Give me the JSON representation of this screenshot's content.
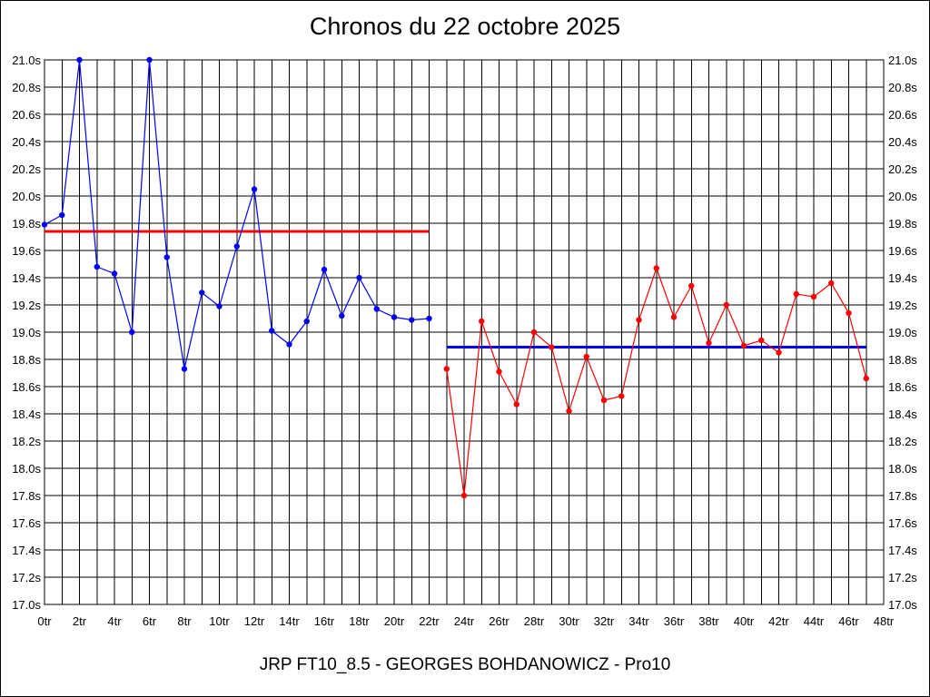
{
  "chart_data": {
    "type": "line",
    "title": "Chronos du 22 octobre 2025",
    "footer": "JRP FT10_8.5 - GEORGES BOHDANOWICZ - Pro10",
    "xlabel": "",
    "ylabel": "",
    "xlim": [
      0,
      48
    ],
    "ylim": [
      17.0,
      21.0
    ],
    "x_tick_step": 2,
    "y_tick_step": 0.2,
    "x_tick_suffix": "tr",
    "y_tick_suffix": "s",
    "grid": true,
    "colors": {
      "blue": "#0000ff",
      "red": "#ff0000",
      "grid": "#000000"
    },
    "series": [
      {
        "color": "#0000ff",
        "points": [
          [
            0,
            19.79
          ],
          [
            1,
            19.86
          ],
          [
            2,
            21.0
          ],
          [
            3,
            19.48
          ],
          [
            4,
            19.43
          ],
          [
            5,
            19.0
          ],
          [
            6,
            21.0
          ],
          [
            7,
            19.55
          ],
          [
            8,
            18.73
          ],
          [
            9,
            19.29
          ],
          [
            10,
            19.19
          ],
          [
            11,
            19.63
          ],
          [
            12,
            20.05
          ],
          [
            13,
            19.01
          ],
          [
            14,
            18.91
          ],
          [
            15,
            19.08
          ],
          [
            16,
            19.46
          ],
          [
            17,
            19.12
          ],
          [
            18,
            19.4
          ],
          [
            19,
            19.17
          ],
          [
            20,
            19.11
          ],
          [
            21,
            19.09
          ],
          [
            22,
            19.1
          ]
        ]
      },
      {
        "color": "#ff0000",
        "points": [
          [
            23,
            18.73
          ],
          [
            24,
            17.8
          ],
          [
            25,
            19.08
          ],
          [
            26,
            18.71
          ],
          [
            27,
            18.47
          ],
          [
            28,
            19.0
          ],
          [
            29,
            18.89
          ],
          [
            30,
            18.42
          ],
          [
            31,
            18.82
          ],
          [
            32,
            18.5
          ],
          [
            33,
            18.53
          ],
          [
            34,
            19.09
          ],
          [
            35,
            19.47
          ],
          [
            36,
            19.11
          ],
          [
            37,
            19.34
          ],
          [
            38,
            18.92
          ],
          [
            39,
            19.2
          ],
          [
            40,
            18.9
          ],
          [
            41,
            18.94
          ],
          [
            42,
            18.85
          ],
          [
            43,
            19.28
          ],
          [
            44,
            19.26
          ],
          [
            45,
            19.36
          ],
          [
            46,
            19.14
          ],
          [
            47,
            18.66
          ]
        ]
      }
    ],
    "reference_lines": [
      {
        "color": "#ff0000",
        "x_start": 0,
        "x_end": 22,
        "y": 19.74
      },
      {
        "color": "#0000ff",
        "x_start": 23,
        "x_end": 47,
        "y": 18.89
      }
    ]
  }
}
